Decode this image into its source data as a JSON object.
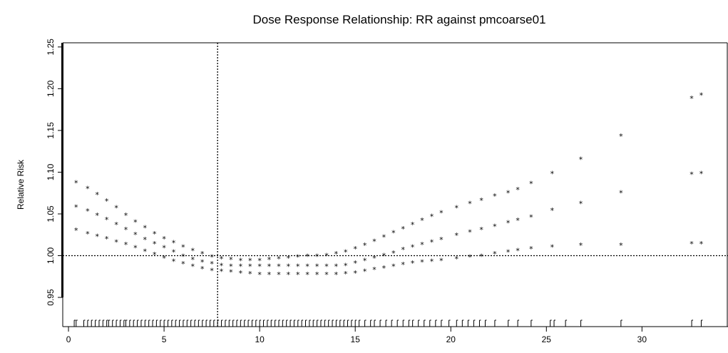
{
  "chart_data": {
    "type": "scatter",
    "title": "Dose Response Relationship: RR against pmcoarse01",
    "xlabel": "",
    "ylabel": "Relative Risk",
    "xlim": [
      -0.3,
      34.5
    ],
    "ylim": [
      0.915,
      1.255
    ],
    "x_ticks": [
      0,
      5,
      10,
      15,
      20,
      25,
      30
    ],
    "y_ticks": [
      0.95,
      1.0,
      1.05,
      1.1,
      1.15,
      1.2,
      1.25
    ],
    "x_tick_labels": [
      "0",
      "5",
      "10",
      "15",
      "20",
      "25",
      "30"
    ],
    "y_tick_labels": [
      "0.95",
      "1.00",
      "1.05",
      "1.10",
      "1.15",
      "1.20",
      "1.25"
    ],
    "reference_lines": {
      "horizontal_y": 1.0,
      "vertical_x": 7.8,
      "style": "dotted"
    },
    "grid": false,
    "legend": "none",
    "marker": "*",
    "series": [
      {
        "role": "upper",
        "points": [
          [
            0.4,
            1.088
          ],
          [
            1.0,
            1.081
          ],
          [
            1.5,
            1.074
          ],
          [
            2.0,
            1.066
          ],
          [
            2.5,
            1.058
          ],
          [
            3.0,
            1.049
          ],
          [
            3.5,
            1.041
          ],
          [
            4.0,
            1.034
          ],
          [
            4.5,
            1.027
          ],
          [
            5.0,
            1.021
          ],
          [
            5.5,
            1.016
          ],
          [
            6.0,
            1.011
          ],
          [
            6.5,
            1.007
          ],
          [
            7.0,
            1.003
          ],
          [
            7.5,
            0.999
          ],
          [
            8.0,
            0.997
          ],
          [
            8.5,
            0.996
          ],
          [
            9.0,
            0.995
          ],
          [
            9.5,
            0.995
          ],
          [
            10.0,
            0.995
          ],
          [
            10.5,
            0.996
          ],
          [
            11.0,
            0.997
          ],
          [
            11.5,
            0.998
          ],
          [
            12.0,
            0.999
          ],
          [
            12.5,
            1.0
          ],
          [
            13.0,
            1.0
          ],
          [
            13.5,
            1.001
          ],
          [
            14.0,
            1.003
          ],
          [
            14.5,
            1.005
          ],
          [
            15.0,
            1.009
          ],
          [
            15.5,
            1.013
          ],
          [
            16.0,
            1.018
          ],
          [
            16.5,
            1.023
          ],
          [
            17.0,
            1.028
          ],
          [
            17.5,
            1.033
          ],
          [
            18.0,
            1.038
          ],
          [
            18.5,
            1.043
          ],
          [
            19.0,
            1.048
          ],
          [
            19.5,
            1.052
          ],
          [
            20.3,
            1.058
          ],
          [
            21.0,
            1.063
          ],
          [
            21.6,
            1.067
          ],
          [
            22.3,
            1.072
          ],
          [
            23.0,
            1.076
          ],
          [
            23.5,
            1.08
          ],
          [
            24.2,
            1.087
          ],
          [
            25.3,
            1.099
          ],
          [
            26.8,
            1.116
          ],
          [
            28.9,
            1.144
          ],
          [
            32.6,
            1.189
          ],
          [
            33.1,
            1.193
          ]
        ]
      },
      {
        "role": "estimate",
        "points": [
          [
            0.4,
            1.059
          ],
          [
            1.0,
            1.054
          ],
          [
            1.5,
            1.049
          ],
          [
            2.0,
            1.044
          ],
          [
            2.5,
            1.038
          ],
          [
            3.0,
            1.032
          ],
          [
            3.5,
            1.026
          ],
          [
            4.0,
            1.02
          ],
          [
            4.5,
            1.015
          ],
          [
            5.0,
            1.01
          ],
          [
            5.5,
            1.005
          ],
          [
            6.0,
            1.0
          ],
          [
            6.5,
            0.996
          ],
          [
            7.0,
            0.993
          ],
          [
            7.5,
            0.991
          ],
          [
            8.0,
            0.989
          ],
          [
            8.5,
            0.988
          ],
          [
            9.0,
            0.988
          ],
          [
            9.5,
            0.988
          ],
          [
            10.0,
            0.988
          ],
          [
            10.5,
            0.988
          ],
          [
            11.0,
            0.988
          ],
          [
            11.5,
            0.988
          ],
          [
            12.0,
            0.988
          ],
          [
            12.5,
            0.988
          ],
          [
            13.0,
            0.988
          ],
          [
            13.5,
            0.988
          ],
          [
            14.0,
            0.988
          ],
          [
            14.5,
            0.989
          ],
          [
            15.0,
            0.992
          ],
          [
            15.5,
            0.995
          ],
          [
            16.0,
            0.998
          ],
          [
            16.5,
            1.001
          ],
          [
            17.0,
            1.004
          ],
          [
            17.5,
            1.008
          ],
          [
            18.0,
            1.011
          ],
          [
            18.5,
            1.014
          ],
          [
            19.0,
            1.017
          ],
          [
            19.5,
            1.02
          ],
          [
            20.3,
            1.025
          ],
          [
            21.0,
            1.029
          ],
          [
            21.6,
            1.032
          ],
          [
            22.3,
            1.036
          ],
          [
            23.0,
            1.04
          ],
          [
            23.5,
            1.043
          ],
          [
            24.2,
            1.047
          ],
          [
            25.3,
            1.055
          ],
          [
            26.8,
            1.063
          ],
          [
            28.9,
            1.076
          ],
          [
            32.6,
            1.098
          ],
          [
            33.1,
            1.099
          ]
        ]
      },
      {
        "role": "lower",
        "points": [
          [
            0.4,
            1.031
          ],
          [
            1.0,
            1.027
          ],
          [
            1.5,
            1.024
          ],
          [
            2.0,
            1.021
          ],
          [
            2.5,
            1.017
          ],
          [
            3.0,
            1.014
          ],
          [
            3.5,
            1.01
          ],
          [
            4.0,
            1.006
          ],
          [
            4.5,
            1.002
          ],
          [
            5.0,
            0.998
          ],
          [
            5.5,
            0.994
          ],
          [
            6.0,
            0.991
          ],
          [
            6.5,
            0.988
          ],
          [
            7.0,
            0.985
          ],
          [
            7.5,
            0.983
          ],
          [
            8.0,
            0.982
          ],
          [
            8.5,
            0.981
          ],
          [
            9.0,
            0.98
          ],
          [
            9.5,
            0.979
          ],
          [
            10.0,
            0.978
          ],
          [
            10.5,
            0.978
          ],
          [
            11.0,
            0.978
          ],
          [
            11.5,
            0.978
          ],
          [
            12.0,
            0.978
          ],
          [
            12.5,
            0.978
          ],
          [
            13.0,
            0.978
          ],
          [
            13.5,
            0.978
          ],
          [
            14.0,
            0.978
          ],
          [
            14.5,
            0.979
          ],
          [
            15.0,
            0.98
          ],
          [
            15.5,
            0.982
          ],
          [
            16.0,
            0.984
          ],
          [
            16.5,
            0.986
          ],
          [
            17.0,
            0.988
          ],
          [
            17.5,
            0.99
          ],
          [
            18.0,
            0.992
          ],
          [
            18.5,
            0.993
          ],
          [
            19.0,
            0.994
          ],
          [
            19.5,
            0.995
          ],
          [
            20.3,
            0.997
          ],
          [
            21.0,
            0.999
          ],
          [
            21.6,
            1.0
          ],
          [
            22.3,
            1.003
          ],
          [
            23.0,
            1.005
          ],
          [
            23.5,
            1.007
          ],
          [
            24.2,
            1.009
          ],
          [
            25.3,
            1.011
          ],
          [
            26.8,
            1.013
          ],
          [
            28.9,
            1.013
          ],
          [
            32.6,
            1.015
          ],
          [
            33.1,
            1.015
          ]
        ]
      }
    ],
    "rug_x": [
      0.3,
      0.4,
      0.8,
      1.0,
      1.2,
      1.4,
      1.6,
      1.8,
      2.0,
      2.1,
      2.3,
      2.5,
      2.7,
      2.9,
      3.0,
      3.2,
      3.4,
      3.6,
      3.8,
      4.0,
      4.2,
      4.4,
      4.6,
      4.8,
      5.0,
      5.2,
      5.4,
      5.6,
      5.8,
      6.0,
      6.2,
      6.4,
      6.6,
      6.8,
      7.0,
      7.2,
      7.4,
      7.6,
      7.8,
      8.0,
      8.2,
      8.4,
      8.6,
      8.8,
      9.0,
      9.2,
      9.4,
      9.6,
      9.8,
      10.0,
      10.2,
      10.4,
      10.6,
      10.8,
      11.0,
      11.2,
      11.4,
      11.6,
      11.8,
      12.0,
      12.2,
      12.4,
      12.6,
      12.8,
      13.0,
      13.2,
      13.4,
      13.6,
      13.8,
      14.0,
      14.2,
      14.4,
      14.6,
      14.8,
      15.0,
      15.2,
      15.5,
      15.8,
      16.0,
      16.3,
      16.6,
      16.9,
      17.2,
      17.5,
      17.8,
      18.0,
      18.3,
      18.6,
      18.9,
      19.2,
      19.5,
      19.9,
      20.3,
      20.6,
      20.9,
      21.2,
      21.5,
      21.8,
      22.3,
      23.0,
      23.5,
      24.2,
      25.2,
      25.4,
      26.0,
      26.8,
      28.9,
      32.6,
      33.1
    ]
  }
}
